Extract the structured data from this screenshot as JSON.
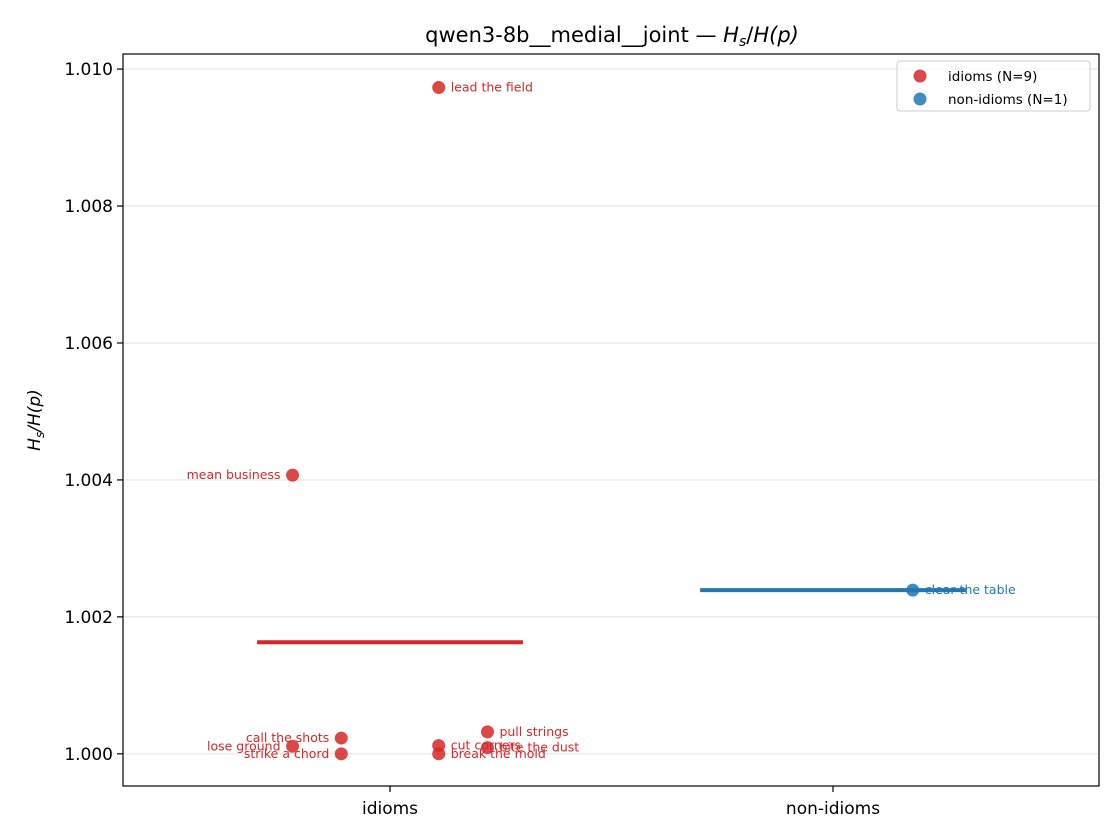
{
  "chart_data": {
    "type": "scatter",
    "title": "qwen3-8b__medial__joint — H_s/H(p)",
    "title_parts": {
      "prefix": "qwen3-8b__medial__joint — ",
      "math": "Hs/H(p)"
    },
    "ylabel": "Hs/H(p)",
    "xlabel": "",
    "categories": [
      "idioms",
      "non-idioms"
    ],
    "ylim": [
      0.99953,
      1.01022
    ],
    "yticks": [
      "1.000",
      "1.002",
      "1.004",
      "1.006",
      "1.008",
      "1.010"
    ],
    "grid": "y",
    "legend_position": "top-right",
    "series": [
      {
        "name": "idioms (N=9)",
        "color": "#d62728",
        "category": "idioms",
        "mean": 1.00163,
        "points": [
          {
            "label": "lead the field",
            "x": 0.11,
            "y": 1.00973
          },
          {
            "label": "mean business",
            "x": -0.22,
            "y": 1.00407
          },
          {
            "label": "call the shots",
            "x": -0.11,
            "y": 1.00023
          },
          {
            "label": "lose ground",
            "x": -0.22,
            "y": 1.00011
          },
          {
            "label": "strike a chord",
            "x": -0.11,
            "y": 1.0
          },
          {
            "label": "cut corners",
            "x": 0.11,
            "y": 1.00012
          },
          {
            "label": "break the mold",
            "x": 0.11,
            "y": 1.0
          },
          {
            "label": "pull strings",
            "x": 0.22,
            "y": 1.00032
          },
          {
            "label": "bite the dust",
            "x": 0.22,
            "y": 1.00009
          }
        ]
      },
      {
        "name": "non-idioms (N=1)",
        "color": "#1f77b4",
        "category": "non-idioms",
        "mean": 1.00239,
        "points": [
          {
            "label": "clear the table",
            "x": 0.18,
            "y": 1.00239
          }
        ]
      }
    ]
  }
}
